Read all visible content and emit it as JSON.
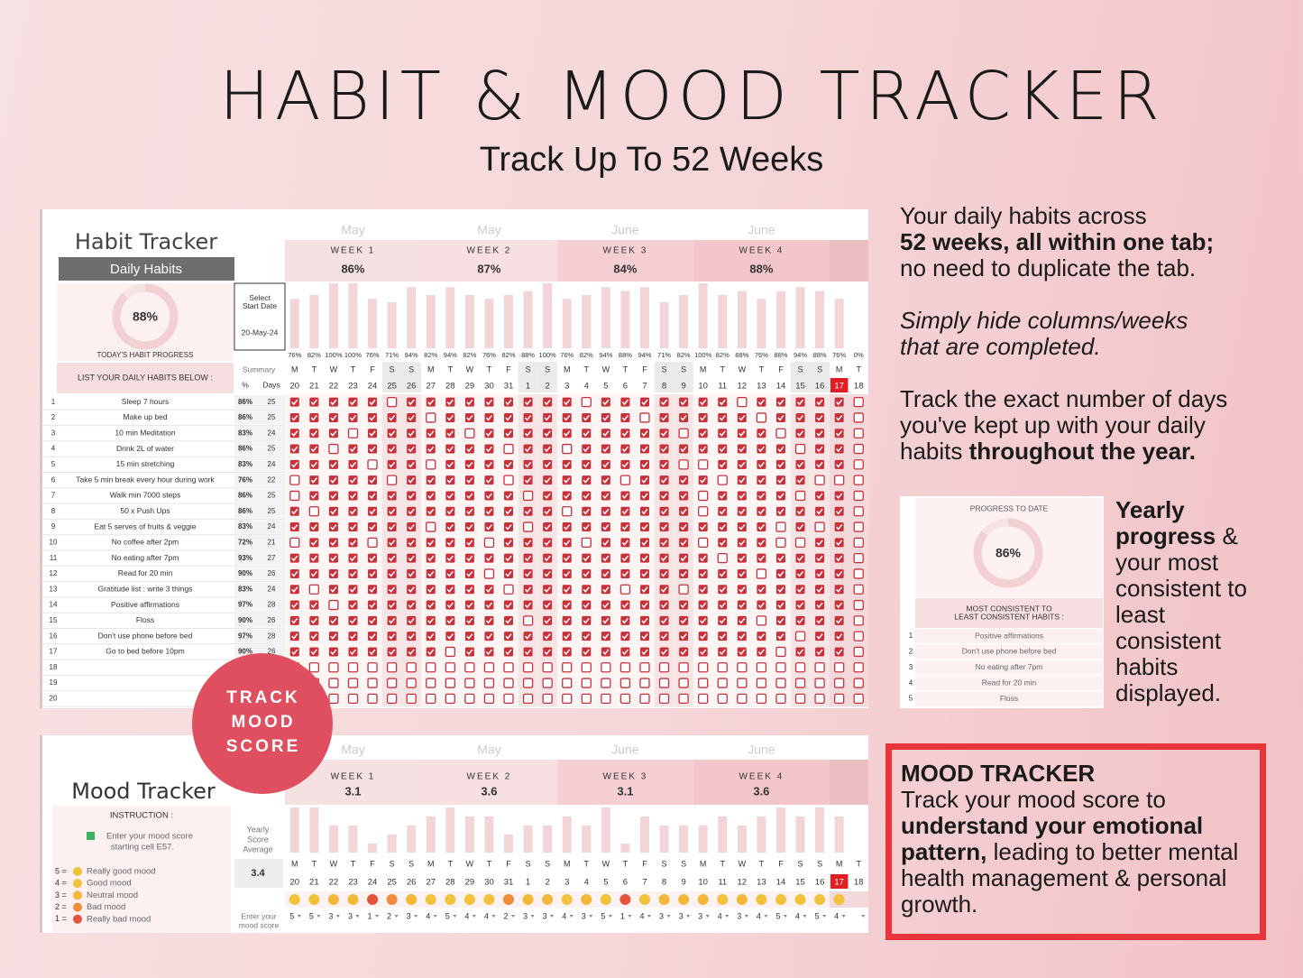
{
  "header": {
    "title": "HABIT & MOOD TRACKER",
    "subtitle": "Track Up To 52 Weeks"
  },
  "habit_tracker": {
    "title": "Habit Tracker",
    "section": "Daily Habits",
    "today_progress": {
      "value": 88,
      "value_label": "88%"
    },
    "today_progress_label": "TODAY'S HABIT PROGRESS",
    "select_start_date": "Select Start Date",
    "start_date": "20-May-24",
    "list_label": "LIST YOUR DAILY HABITS BELOW :",
    "summary_label": "Summary",
    "pct_label": "%",
    "days_label": "Days",
    "months": [
      "May",
      "May",
      "June",
      "June"
    ],
    "weeks": [
      {
        "label": "WEEK 1",
        "score": "86%"
      },
      {
        "label": "WEEK 2",
        "score": "87%"
      },
      {
        "label": "WEEK 3",
        "score": "84%"
      },
      {
        "label": "WEEK 4",
        "score": "88%"
      }
    ],
    "daily_progress": {
      "values": [
        76,
        82,
        100,
        100,
        76,
        71,
        94,
        82,
        94,
        82,
        76,
        82,
        88,
        100,
        76,
        82,
        94,
        88,
        94,
        71,
        82,
        100,
        82,
        88,
        76,
        88,
        94,
        88,
        76,
        0
      ],
      "value_labels": [
        "76%",
        "82%",
        "100%",
        "100%",
        "76%",
        "71%",
        "94%",
        "82%",
        "94%",
        "82%",
        "76%",
        "82%",
        "88%",
        "100%",
        "76%",
        "82%",
        "94%",
        "88%",
        "94%",
        "71%",
        "82%",
        "100%",
        "82%",
        "88%",
        "76%",
        "88%",
        "94%",
        "88%",
        "76%",
        "0%"
      ]
    },
    "weekdays": [
      "M",
      "T",
      "W",
      "T",
      "F",
      "S",
      "S",
      "M",
      "T",
      "W",
      "T",
      "F",
      "S",
      "S",
      "M",
      "T",
      "W",
      "T",
      "F",
      "S",
      "S",
      "M",
      "T",
      "W",
      "T",
      "F",
      "S",
      "S",
      "M",
      "T"
    ],
    "dates": [
      20,
      21,
      22,
      23,
      24,
      25,
      26,
      27,
      28,
      29,
      30,
      31,
      1,
      2,
      3,
      4,
      5,
      6,
      7,
      8,
      9,
      10,
      11,
      12,
      13,
      14,
      15,
      16,
      17,
      18
    ],
    "highlight_date": 17,
    "habits": [
      {
        "number": 1,
        "name": "Sleep 7 hours",
        "pct": "86%",
        "days": 25,
        "checks": "111110111111111011111110111110"
      },
      {
        "number": 2,
        "name": "Make up bed",
        "pct": "86%",
        "days": 25,
        "checks": "111111101111111111011111011110"
      },
      {
        "number": 3,
        "name": "10 min Meditation",
        "pct": "83%",
        "days": 24,
        "checks": "111011111011111111110111101110"
      },
      {
        "number": 4,
        "name": "Drink 2L of water",
        "pct": "86%",
        "days": 25,
        "checks": "110111111110110111111111110110"
      },
      {
        "number": 5,
        "name": "15 min stretching",
        "pct": "83%",
        "days": 24,
        "checks": "111101101111111111110011111110"
      },
      {
        "number": 6,
        "name": "Take 5 min break every hour during work",
        "pct": "76%",
        "days": 22,
        "checks": "011110111110111110111101111000"
      },
      {
        "number": 7,
        "name": "Walk min 7000 steps",
        "pct": "86%",
        "days": 25,
        "checks": "011111111111011111111011110110"
      },
      {
        "number": 8,
        "name": "50 x Push Ups",
        "pct": "86%",
        "days": 25,
        "checks": "101111111111110111111011111110"
      },
      {
        "number": 9,
        "name": "Eat 5 serves of fruits & veggie",
        "pct": "83%",
        "days": 24,
        "checks": "111111101111011111111111101010"
      },
      {
        "number": 10,
        "name": "No coffee after 2pm",
        "pct": "72%",
        "days": 21,
        "checks": "011101111101111011111011100110"
      },
      {
        "number": 11,
        "name": "No eating after 7pm",
        "pct": "93%",
        "days": 27,
        "checks": "111111111111111111111101111110"
      },
      {
        "number": 12,
        "name": "Read for 20 min",
        "pct": "90%",
        "days": 26,
        "checks": "111111111101111111111111011110"
      },
      {
        "number": 13,
        "name": "Gratitude list : write 3 things",
        "pct": "83%",
        "days": 24,
        "checks": "101111111110111110110111111110"
      },
      {
        "number": 14,
        "name": "Positive affirmations",
        "pct": "97%",
        "days": 28,
        "checks": "110111111111111111111111111110"
      },
      {
        "number": 15,
        "name": "Floss",
        "pct": "90%",
        "days": 26,
        "checks": "111111111111011111111111011110"
      },
      {
        "number": 16,
        "name": "Don't use phone before bed",
        "pct": "97%",
        "days": 28,
        "checks": "111111111111111111111111110110"
      },
      {
        "number": 17,
        "name": "Go to bed before 10pm",
        "pct": "90%",
        "days": 26,
        "checks": "111111110111111111111111101110"
      },
      {
        "number": 18,
        "checks": "000000000000000000000000000000"
      },
      {
        "number": 19,
        "checks": "000000000000000000000000000000"
      },
      {
        "number": 20,
        "checks": "000000000000000000000000000000"
      }
    ]
  },
  "badge": {
    "lines": [
      "TRACK",
      "MOOD",
      "SCORE"
    ]
  },
  "mood_tracker": {
    "title": "Mood Tracker",
    "months": [
      "May",
      "May",
      "June",
      "June"
    ],
    "weeks": [
      {
        "label": "WEEK 1",
        "score": 3.1
      },
      {
        "label": "WEEK 2",
        "score": 3.6
      },
      {
        "label": "WEEK 3",
        "score": 3.1
      },
      {
        "label": "WEEK 4",
        "score": 3.6
      }
    ],
    "instruction_label": "INSTRUCTION :",
    "instruction": [
      "Enter your mood score",
      "starting cell E57."
    ],
    "scale": [
      {
        "key": "5 =",
        "label": "Really good mood"
      },
      {
        "key": "4 =",
        "label": "Good mood"
      },
      {
        "key": "3 =",
        "label": "Neutral mood"
      },
      {
        "key": "2 =",
        "label": "Bad mood"
      },
      {
        "key": "1 =",
        "label": "Really bad mood"
      }
    ],
    "average_label": [
      "Yearly",
      "Score",
      "Average"
    ],
    "average": 3.4,
    "weekdays": [
      "M",
      "T",
      "W",
      "T",
      "F",
      "S",
      "S",
      "M",
      "T",
      "W",
      "T",
      "F",
      "S",
      "S",
      "M",
      "T",
      "W",
      "T",
      "F",
      "S",
      "S",
      "M",
      "T",
      "W",
      "T",
      "F",
      "S",
      "S",
      "M",
      "T"
    ],
    "dates": [
      20,
      21,
      22,
      23,
      24,
      25,
      26,
      27,
      28,
      29,
      30,
      31,
      1,
      2,
      3,
      4,
      5,
      6,
      7,
      8,
      9,
      10,
      11,
      12,
      13,
      14,
      15,
      16,
      17,
      18
    ],
    "scores": [
      5,
      5,
      3,
      3,
      1,
      2,
      3,
      4,
      5,
      4,
      4,
      2,
      3,
      3,
      4,
      3,
      5,
      1,
      4,
      3,
      3,
      3,
      4,
      3,
      4,
      5,
      4,
      5,
      4,
      null
    ],
    "enter_label": [
      "Enter your",
      "mood score"
    ]
  },
  "features": {
    "habits_note": [
      "Your daily habits across",
      "52 weeks, all within one tab;",
      "no need to duplicate the tab."
    ],
    "hide_note": [
      "Simply hide columns/weeks",
      "that are completed."
    ],
    "days_note": [
      "Track the exact number of days you've kept up with your daily habits",
      "throughout the year."
    ],
    "progress_card": {
      "title": "PROGRESS TO DATE",
      "progress": {
        "value": 86,
        "value_label": "86%"
      },
      "ranking_label": [
        "MOST CONSISTENT TO",
        "LEAST CONSISTENT HABITS :"
      ],
      "ranking": [
        {
          "number": 1,
          "name": "Positive affirmations"
        },
        {
          "number": 2,
          "name": "Don't use phone before bed"
        },
        {
          "number": 3,
          "name": "No eating after 7pm"
        },
        {
          "number": 4,
          "name": "Read for 20 min"
        },
        {
          "number": 5,
          "name": "Floss"
        }
      ]
    },
    "yearly_note": [
      "Yearly progress",
      "& your most consistent to least consistent habits displayed."
    ],
    "mood_box": {
      "title": "MOOD TRACKER",
      "text": [
        "Track your mood score to",
        "understand your emotional pattern,",
        "leading to better mental health management & personal growth."
      ]
    }
  }
}
